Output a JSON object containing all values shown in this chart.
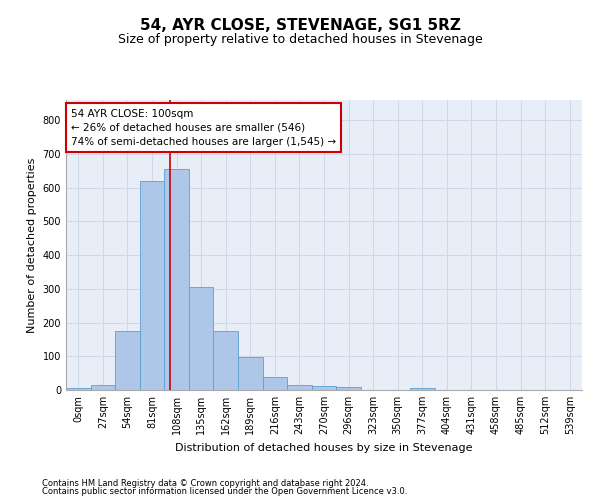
{
  "title": "54, AYR CLOSE, STEVENAGE, SG1 5RZ",
  "subtitle": "Size of property relative to detached houses in Stevenage",
  "xlabel": "Distribution of detached houses by size in Stevenage",
  "ylabel": "Number of detached properties",
  "bin_labels": [
    "0sqm",
    "27sqm",
    "54sqm",
    "81sqm",
    "108sqm",
    "135sqm",
    "162sqm",
    "189sqm",
    "216sqm",
    "243sqm",
    "270sqm",
    "296sqm",
    "323sqm",
    "350sqm",
    "377sqm",
    "404sqm",
    "431sqm",
    "458sqm",
    "485sqm",
    "512sqm",
    "539sqm"
  ],
  "bar_values": [
    7,
    14,
    175,
    620,
    655,
    305,
    175,
    97,
    40,
    15,
    12,
    8,
    0,
    0,
    5,
    0,
    0,
    0,
    0,
    0,
    0
  ],
  "bar_color": "#aec6e8",
  "bar_edge_color": "#5a9fd4",
  "vline_x": 3.72,
  "vline_color": "#cc0000",
  "annotation_text": "54 AYR CLOSE: 100sqm\n← 26% of detached houses are smaller (546)\n74% of semi-detached houses are larger (1,545) →",
  "annotation_box_color": "#ffffff",
  "annotation_box_edge": "#cc0000",
  "ylim": [
    0,
    860
  ],
  "yticks": [
    0,
    100,
    200,
    300,
    400,
    500,
    600,
    700,
    800
  ],
  "grid_color": "#d0d8e8",
  "bg_color": "#e8eef8",
  "footer1": "Contains HM Land Registry data © Crown copyright and database right 2024.",
  "footer2": "Contains public sector information licensed under the Open Government Licence v3.0.",
  "title_fontsize": 11,
  "subtitle_fontsize": 9,
  "axis_label_fontsize": 8,
  "tick_fontsize": 7,
  "annotation_fontsize": 7.5,
  "footer_fontsize": 6
}
